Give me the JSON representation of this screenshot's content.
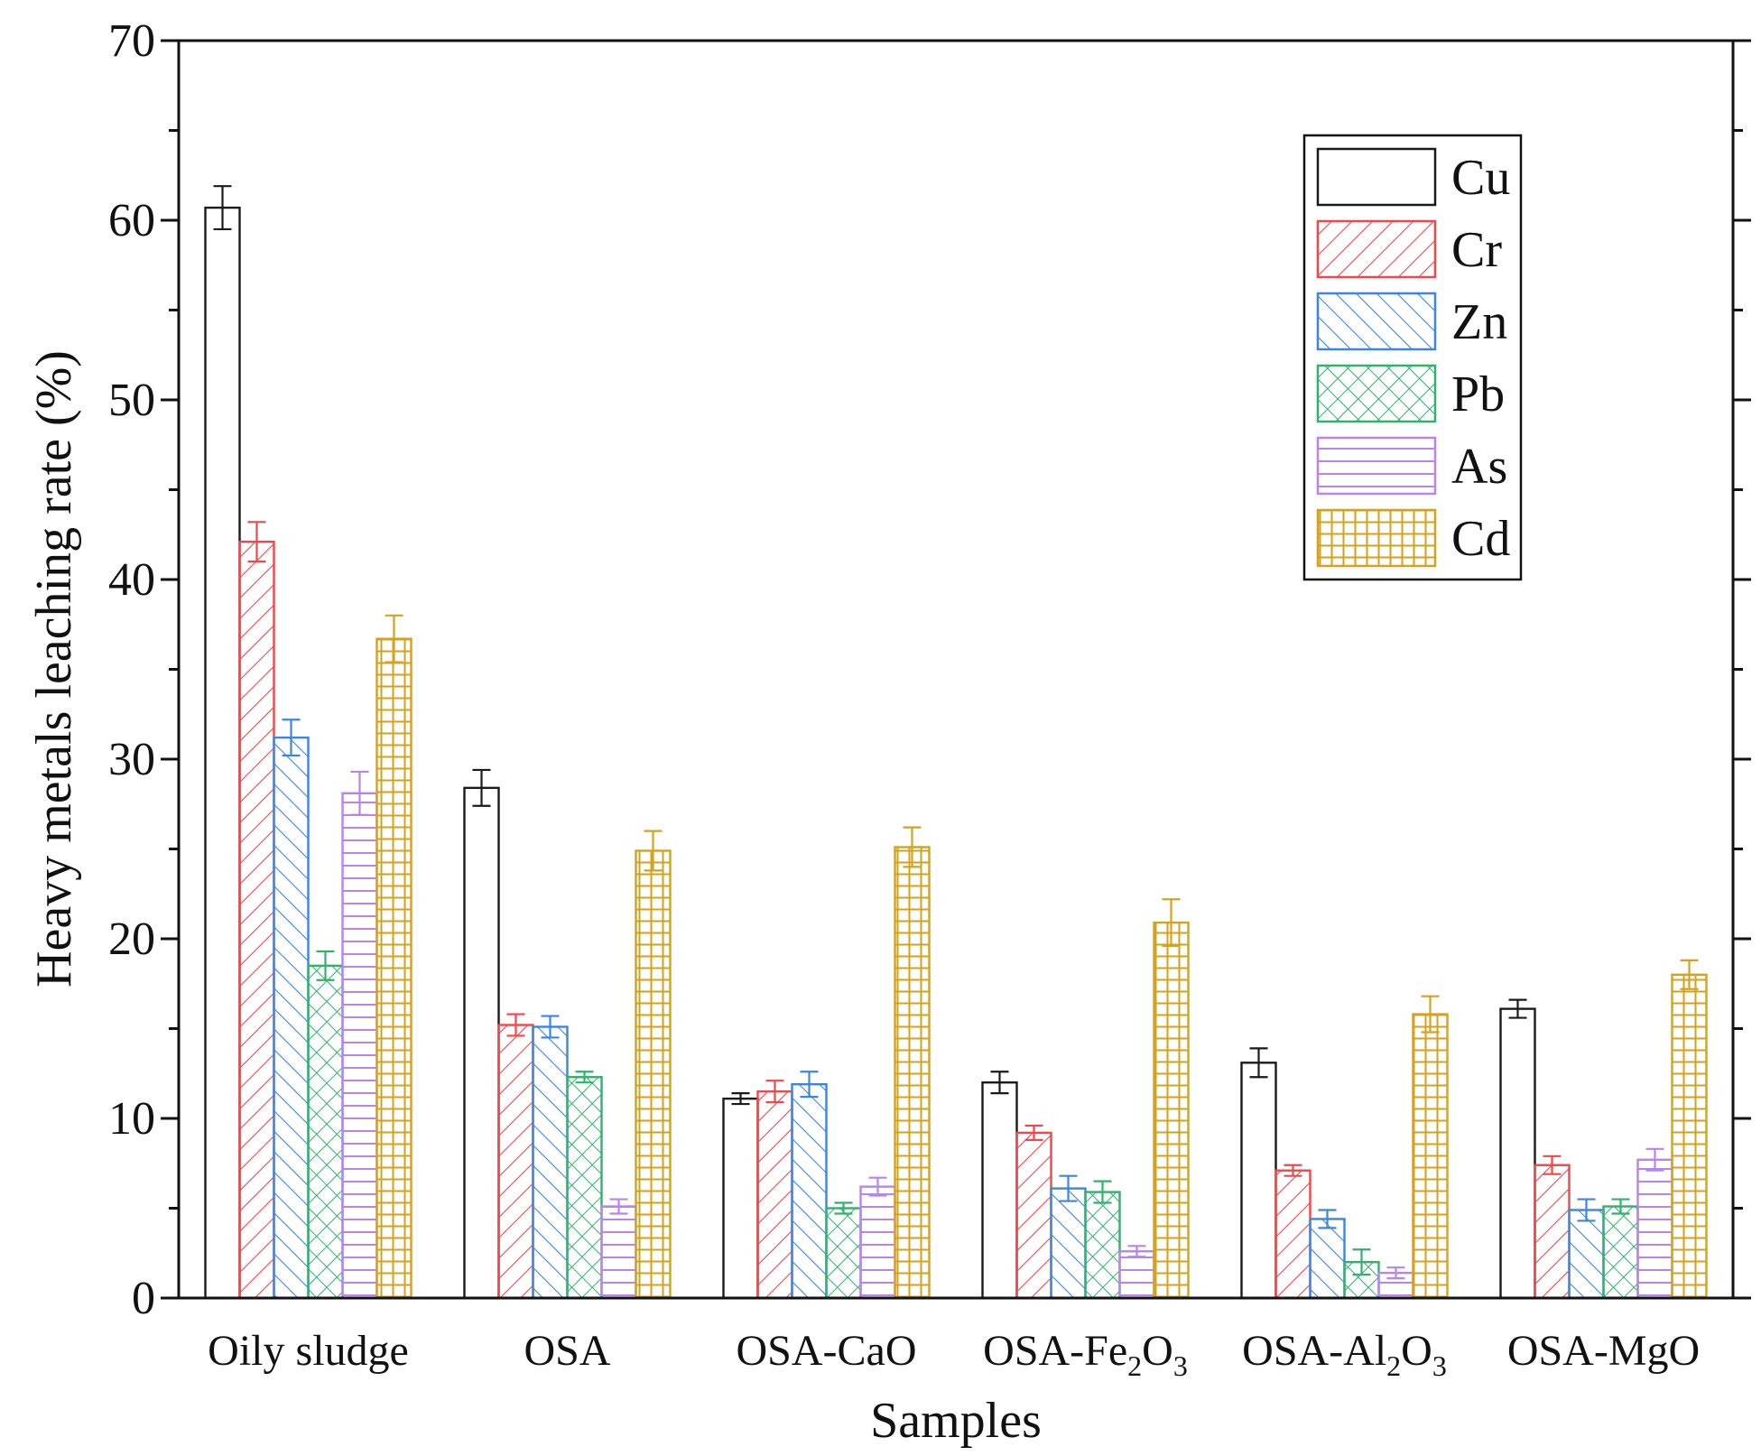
{
  "chart_data": {
    "type": "bar",
    "title": "",
    "xlabel": "Samples",
    "ylabel": "Heavy metals leaching rate (%)",
    "ylim": [
      0,
      70
    ],
    "yticks": [
      0,
      10,
      20,
      30,
      40,
      50,
      60,
      70
    ],
    "categories": [
      {
        "base": "Oily sludge",
        "parts": [
          {
            "t": "Oily sludge"
          }
        ]
      },
      {
        "base": "OSA",
        "parts": [
          {
            "t": "OSA"
          }
        ]
      },
      {
        "base": "OSA-CaO",
        "parts": [
          {
            "t": "OSA-CaO"
          }
        ]
      },
      {
        "base": "OSA-Fe2O3",
        "parts": [
          {
            "t": "OSA-Fe"
          },
          {
            "t": "2",
            "sub": true
          },
          {
            "t": "O"
          },
          {
            "t": "3",
            "sub": true
          }
        ]
      },
      {
        "base": "OSA-Al2O3",
        "parts": [
          {
            "t": "OSA-Al"
          },
          {
            "t": "2",
            "sub": true
          },
          {
            "t": "O"
          },
          {
            "t": "3",
            "sub": true
          }
        ]
      },
      {
        "base": "OSA-MgO",
        "parts": [
          {
            "t": "OSA-MgO"
          }
        ]
      }
    ],
    "series": [
      {
        "name": "Cu",
        "color": "#1a1a1a",
        "pattern": "none",
        "values": [
          60.7,
          28.4,
          11.1,
          12.0,
          13.1,
          16.1
        ],
        "errors": [
          1.2,
          1.0,
          0.3,
          0.6,
          0.8,
          0.5
        ]
      },
      {
        "name": "Cr",
        "color": "#f0474a",
        "pattern": "fwd",
        "values": [
          42.1,
          15.2,
          11.5,
          9.2,
          7.1,
          7.4
        ],
        "errors": [
          1.1,
          0.6,
          0.6,
          0.4,
          0.3,
          0.5
        ]
      },
      {
        "name": "Zn",
        "color": "#3a86e0",
        "pattern": "back",
        "values": [
          31.2,
          15.1,
          11.9,
          6.1,
          4.4,
          4.9
        ],
        "errors": [
          1.0,
          0.6,
          0.7,
          0.7,
          0.5,
          0.6
        ]
      },
      {
        "name": "Pb",
        "color": "#2fb36a",
        "pattern": "cross",
        "values": [
          18.5,
          12.3,
          5.0,
          5.9,
          2.0,
          5.1
        ],
        "errors": [
          0.8,
          0.3,
          0.3,
          0.6,
          0.7,
          0.4
        ]
      },
      {
        "name": "As",
        "color": "#b983f0",
        "pattern": "horiz",
        "values": [
          28.1,
          5.1,
          6.2,
          2.6,
          1.4,
          7.7
        ],
        "errors": [
          1.2,
          0.4,
          0.5,
          0.3,
          0.3,
          0.6
        ]
      },
      {
        "name": "Cd",
        "color": "#d4a21c",
        "pattern": "grid",
        "values": [
          36.7,
          24.9,
          25.1,
          20.9,
          15.8,
          18.0
        ],
        "errors": [
          1.3,
          1.1,
          1.1,
          1.3,
          1.0,
          0.8
        ]
      }
    ]
  }
}
